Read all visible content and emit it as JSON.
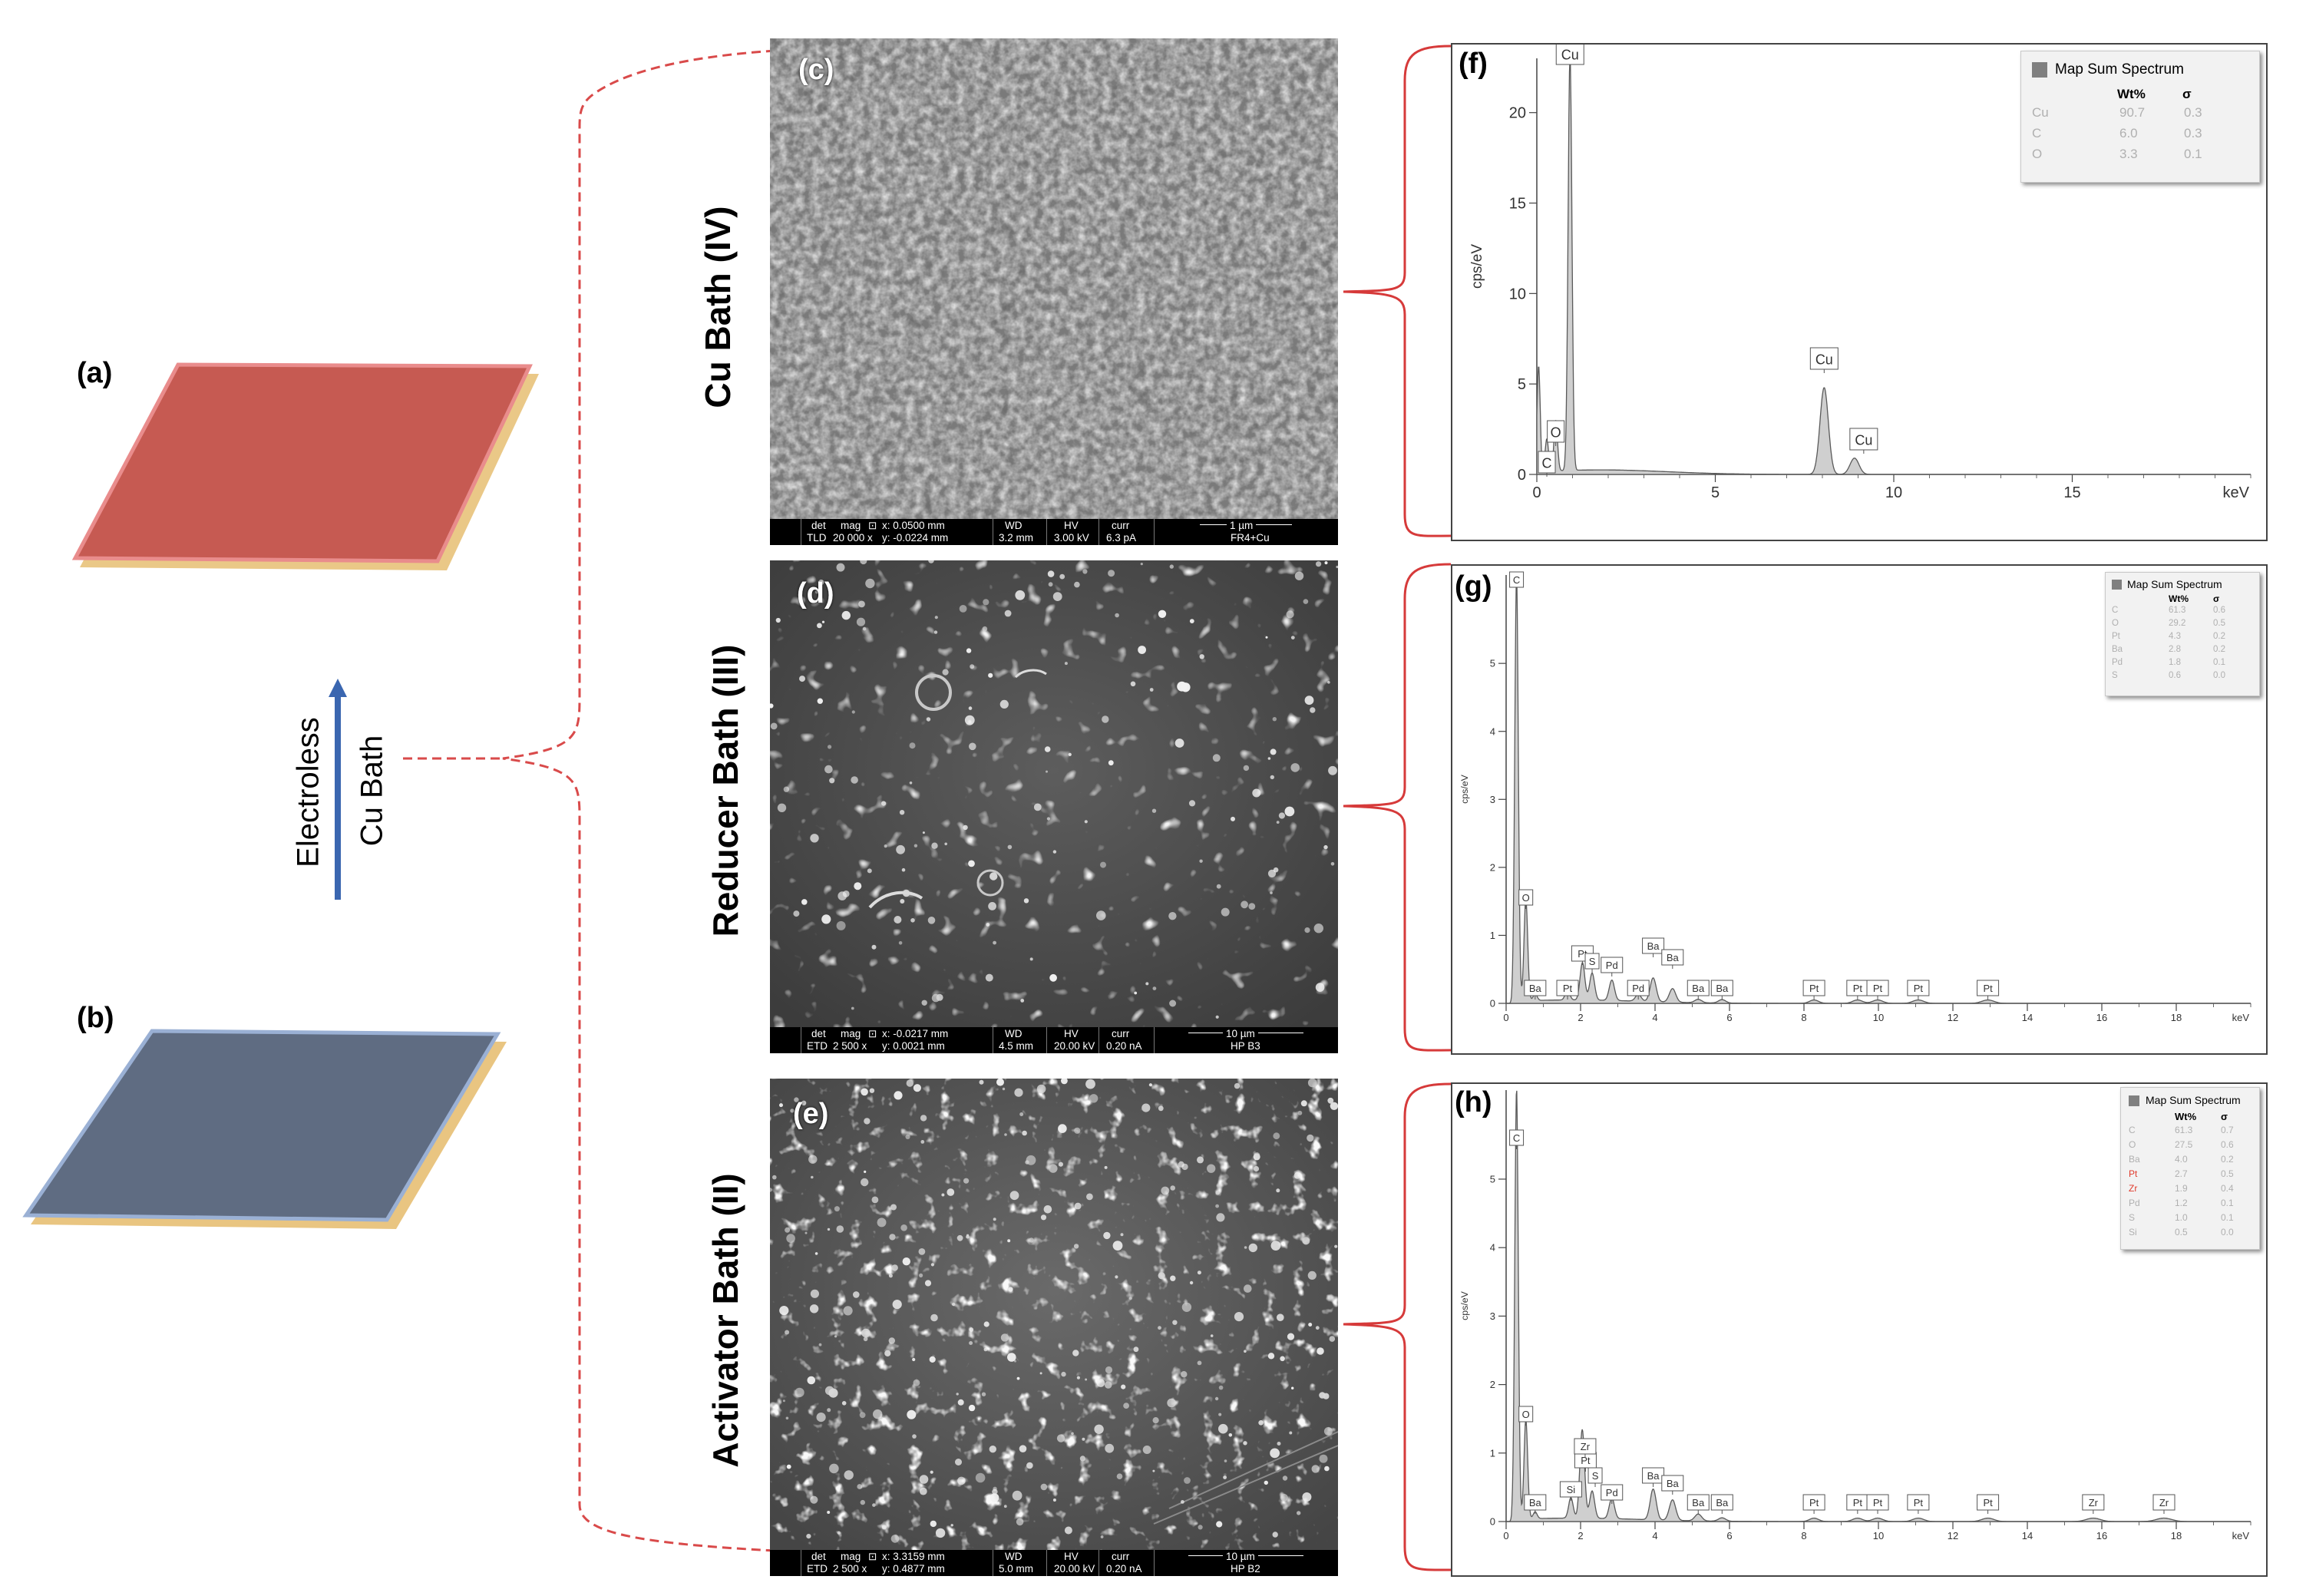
{
  "labels": {
    "a": "(a)",
    "b": "(b)",
    "c": "(c)",
    "d": "(d)",
    "e": "(e)",
    "f": "(f)",
    "g": "(g)",
    "h": "(h)"
  },
  "rows": {
    "cu_bath": "Cu Bath (IV)",
    "reducer_bath": "Reducer Bath (III)",
    "activator_bath": "Activator Bath (II)"
  },
  "arrow": {
    "line1": "Electroless",
    "line2": "Cu Bath"
  },
  "colors": {
    "copper_plate": "#c65a52",
    "blank_plate": "#5f6c82",
    "substrate_edge": "#e8c27a",
    "arrow": "#3a66b0",
    "bracket_dashed": "#d94a4a",
    "bracket_solid": "#d63a3a"
  },
  "sem": {
    "c": {
      "headers": [
        "det",
        "mag",
        "⊡",
        "x: 0.0500 mm",
        "WD",
        "HV",
        "curr"
      ],
      "values": [
        "TLD",
        "20 000 x",
        "y: -0.0224 mm",
        "3.2 mm",
        "3.00 kV",
        "6.3 pA"
      ],
      "scale": "1 µm",
      "sample": "FR4+Cu"
    },
    "d": {
      "headers": [
        "det",
        "mag",
        "⊡",
        "x: -0.0217 mm",
        "WD",
        "HV",
        "curr"
      ],
      "values": [
        "ETD",
        "2 500 x",
        "y: 0.0021 mm",
        "4.5 mm",
        "20.00 kV",
        "0.20 nA"
      ],
      "scale": "10 µm",
      "sample": "HP B3"
    },
    "e": {
      "headers": [
        "det",
        "mag",
        "⊡",
        "x: 3.3159 mm",
        "WD",
        "HV",
        "curr"
      ],
      "values": [
        "ETD",
        "2 500 x",
        "y: 0.4877 mm",
        "5.0 mm",
        "20.00 kV",
        "0.20 nA"
      ],
      "scale": "10 µm",
      "sample": "HP B2"
    }
  },
  "chart_data": [
    {
      "id": "f",
      "type": "line",
      "title": "Map Sum Spectrum",
      "xlabel": "keV",
      "ylabel": "cps/eV",
      "xlim": [
        0,
        20
      ],
      "ylim": [
        0,
        23
      ],
      "xticks": [
        0,
        5,
        10,
        15
      ],
      "yticks": [
        0,
        5,
        10,
        15,
        20
      ],
      "peaks": [
        {
          "label": "C",
          "x": 0.28,
          "y": 1.8
        },
        {
          "label": "O",
          "x": 0.53,
          "y": 2.8
        },
        {
          "label": "Cu",
          "x": 0.93,
          "y": 23
        },
        {
          "label": "Cu",
          "x": 8.05,
          "y": 4.8
        },
        {
          "label": "Cu",
          "x": 8.9,
          "y": 0.9
        }
      ],
      "extra": [
        {
          "x": 0.05,
          "y": 6.0
        }
      ],
      "table": {
        "headers": [
          "Wt%",
          "σ"
        ],
        "rows": [
          {
            "el": "Cu",
            "wt": "90.7",
            "sigma": "0.3"
          },
          {
            "el": "C",
            "wt": "6.0",
            "sigma": "0.3"
          },
          {
            "el": "O",
            "wt": "3.3",
            "sigma": "0.1"
          }
        ]
      }
    },
    {
      "id": "g",
      "type": "line",
      "title": "Map Sum Spectrum",
      "xlabel": "keV",
      "ylabel": "cps/eV",
      "xlim": [
        0,
        20
      ],
      "ylim": [
        0,
        6.3
      ],
      "xticks": [
        0,
        2,
        4,
        6,
        8,
        10,
        12,
        14,
        16,
        18
      ],
      "yticks": [
        0,
        1,
        2,
        3,
        4,
        5
      ],
      "peaks": [
        {
          "label": "C",
          "x": 0.28,
          "y": 6.3
        },
        {
          "label": "O",
          "x": 0.53,
          "y": 1.5
        },
        {
          "label": "Ba",
          "x": 0.78,
          "y": 0.1
        },
        {
          "label": "Pt",
          "x": 1.65,
          "y": 0.15
        },
        {
          "label": "Pt",
          "x": 2.05,
          "y": 0.55
        },
        {
          "label": "S",
          "x": 2.31,
          "y": 0.4
        },
        {
          "label": "Pd",
          "x": 2.84,
          "y": 0.3
        },
        {
          "label": "Pd",
          "x": 3.55,
          "y": 0.1
        },
        {
          "label": "Ba",
          "x": 3.95,
          "y": 0.35
        },
        {
          "label": "Ba",
          "x": 4.47,
          "y": 0.2
        },
        {
          "label": "Ba",
          "x": 5.16,
          "y": 0.05
        },
        {
          "label": "Ba",
          "x": 5.8,
          "y": 0.05
        },
        {
          "label": "Pt",
          "x": 8.27,
          "y": 0.05
        },
        {
          "label": "Pt",
          "x": 9.44,
          "y": 0.05
        },
        {
          "label": "Pt",
          "x": 9.98,
          "y": 0.05
        },
        {
          "label": "Pt",
          "x": 11.07,
          "y": 0.05
        },
        {
          "label": "Pt",
          "x": 12.94,
          "y": 0.05
        }
      ],
      "table": {
        "headers": [
          "Wt%",
          "σ"
        ],
        "rows": [
          {
            "el": "C",
            "wt": "61.3",
            "sigma": "0.6"
          },
          {
            "el": "O",
            "wt": "29.2",
            "sigma": "0.5"
          },
          {
            "el": "Pt",
            "wt": "4.3",
            "sigma": "0.2"
          },
          {
            "el": "Ba",
            "wt": "2.8",
            "sigma": "0.2"
          },
          {
            "el": "Pd",
            "wt": "1.8",
            "sigma": "0.1"
          },
          {
            "el": "S",
            "wt": "0.6",
            "sigma": "0.0"
          }
        ]
      }
    },
    {
      "id": "h",
      "type": "line",
      "title": "Map Sum Spectrum",
      "xlabel": "keV",
      "ylabel": "cps/eV",
      "xlim": [
        0,
        20
      ],
      "ylim": [
        0,
        6.3
      ],
      "xticks": [
        0,
        2,
        4,
        6,
        8,
        10,
        12,
        14,
        16,
        18
      ],
      "yticks": [
        0,
        1,
        2,
        3,
        4,
        5
      ],
      "peaks": [
        {
          "label": "C",
          "x": 0.28,
          "y": 6.3
        },
        {
          "label": "O",
          "x": 0.53,
          "y": 1.45
        },
        {
          "label": "Ba",
          "x": 0.78,
          "y": 0.1
        },
        {
          "label": "Si",
          "x": 1.74,
          "y": 0.3
        },
        {
          "label": "Pt",
          "x": 2.05,
          "y": 0.55
        },
        {
          "label": "Zr",
          "x": 2.04,
          "y": 0.75
        },
        {
          "label": "S",
          "x": 2.31,
          "y": 0.4
        },
        {
          "label": "Pd",
          "x": 2.84,
          "y": 0.3
        },
        {
          "label": "Ba",
          "x": 3.95,
          "y": 0.45
        },
        {
          "label": "Ba",
          "x": 4.47,
          "y": 0.3
        },
        {
          "label": "Ba",
          "x": 5.16,
          "y": 0.1
        },
        {
          "label": "Ba",
          "x": 5.8,
          "y": 0.05
        },
        {
          "label": "Pt",
          "x": 8.27,
          "y": 0.05
        },
        {
          "label": "Pt",
          "x": 9.44,
          "y": 0.05
        },
        {
          "label": "Pt",
          "x": 9.98,
          "y": 0.05
        },
        {
          "label": "Pt",
          "x": 11.07,
          "y": 0.05
        },
        {
          "label": "Pt",
          "x": 12.94,
          "y": 0.05
        },
        {
          "label": "Zr",
          "x": 15.77,
          "y": 0.05
        },
        {
          "label": "Zr",
          "x": 17.67,
          "y": 0.05
        }
      ],
      "table": {
        "headers": [
          "Wt%",
          "σ"
        ],
        "rows": [
          {
            "el": "C",
            "wt": "61.3",
            "sigma": "0.7"
          },
          {
            "el": "O",
            "wt": "27.5",
            "sigma": "0.6"
          },
          {
            "el": "Ba",
            "wt": "4.0",
            "sigma": "0.2"
          },
          {
            "el": "Pt",
            "wt": "2.7",
            "sigma": "0.5",
            "highlight": true
          },
          {
            "el": "Zr",
            "wt": "1.9",
            "sigma": "0.4",
            "highlight": true
          },
          {
            "el": "Pd",
            "wt": "1.2",
            "sigma": "0.1"
          },
          {
            "el": "S",
            "wt": "1.0",
            "sigma": "0.1"
          },
          {
            "el": "Si",
            "wt": "0.5",
            "sigma": "0.0"
          }
        ]
      }
    }
  ]
}
